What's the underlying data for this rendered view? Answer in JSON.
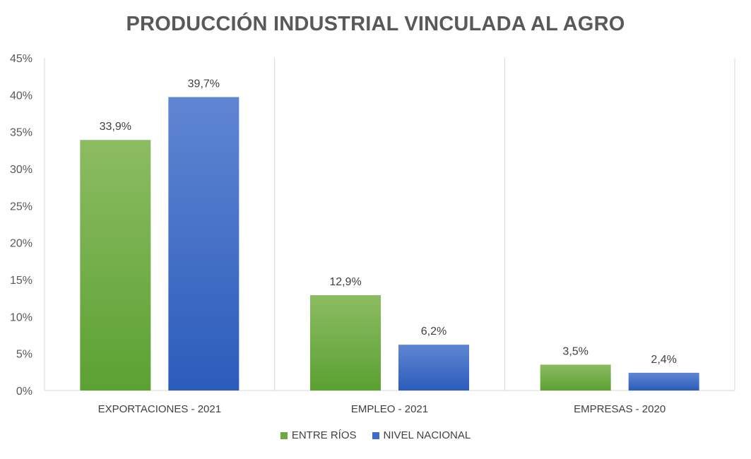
{
  "chart_data": {
    "type": "bar",
    "title": "PRODUCCIÓN INDUSTRIAL VINCULADA AL AGRO",
    "categories": [
      "EXPORTACIONES - 2021",
      "EMPLEO - 2021",
      "EMPRESAS - 2020"
    ],
    "series": [
      {
        "name": "ENTRE RÍOS",
        "values": [
          33.9,
          12.9,
          3.5
        ],
        "labels": [
          "33,9%",
          "12,9%",
          "3,5%"
        ],
        "color_light": "#8cbc62",
        "color_dark": "#5ba132"
      },
      {
        "name": "NIVEL NACIONAL",
        "values": [
          39.7,
          6.2,
          2.4
        ],
        "labels": [
          "39,7%",
          "6,2%",
          "2,4%"
        ],
        "color_light": "#5f86d2",
        "color_dark": "#2b5cbb"
      }
    ],
    "y_ticks": [
      "0%",
      "5%",
      "10%",
      "15%",
      "20%",
      "25%",
      "30%",
      "35%",
      "40%",
      "45%"
    ],
    "ylim": [
      0,
      45
    ],
    "grid": false,
    "legend_position": "bottom"
  }
}
